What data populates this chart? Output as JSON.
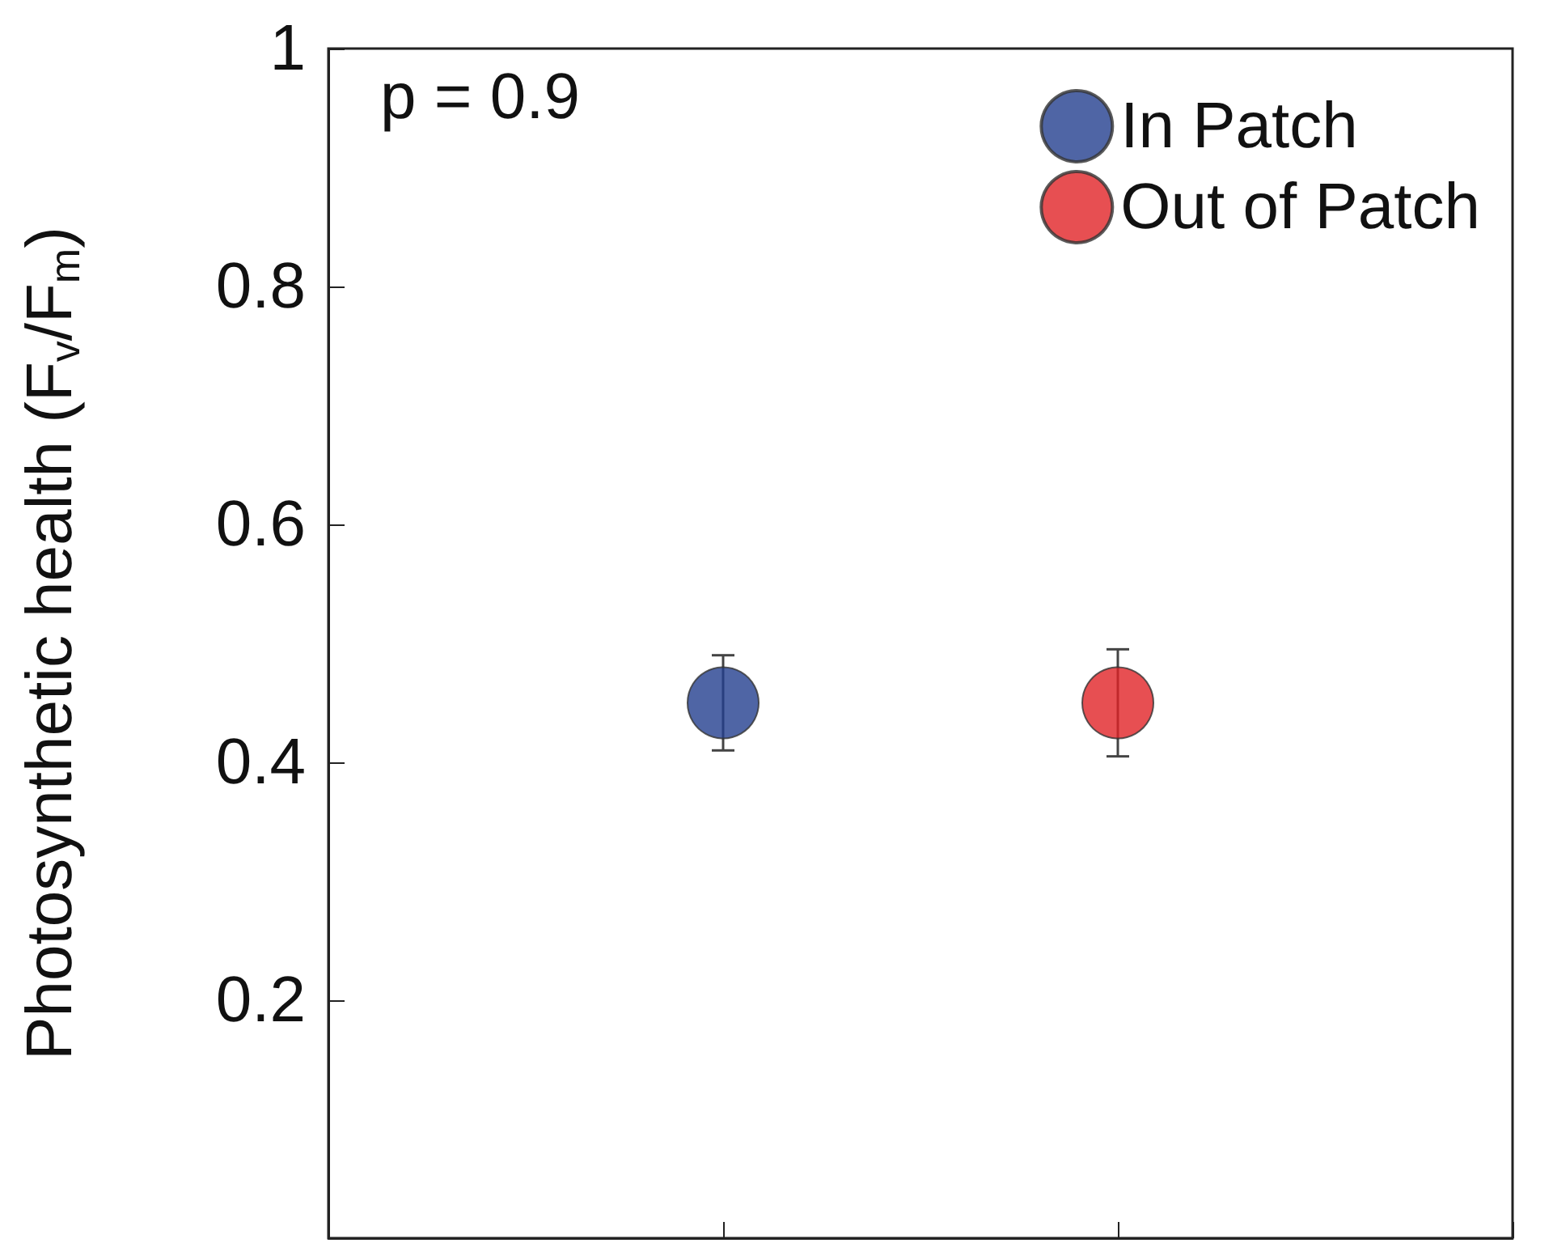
{
  "chart_data": {
    "type": "scatter",
    "ylabel": "Photosynthetic health (F$_{v}$/F$_{m}$)",
    "annotations": [
      "p = 0.9"
    ],
    "categories": [
      null,
      null,
      null,
      null
    ],
    "ylim": [
      0,
      1
    ],
    "yticks": [
      0.2,
      0.4,
      0.6,
      0.8,
      1
    ],
    "tick_labels": "y",
    "legend": "top right",
    "marker": "circle",
    "series": [
      {
        "name": "In Patch",
        "color": "#233e8f",
        "values": [
          null,
          0.45,
          null,
          null
        ],
        "errors": [
          null,
          0.04,
          null,
          null
        ]
      },
      {
        "name": "Out of Patch",
        "color": "#e12327",
        "values": [
          null,
          null,
          0.45,
          null
        ],
        "errors": [
          null,
          null,
          0.045,
          null
        ]
      }
    ]
  }
}
